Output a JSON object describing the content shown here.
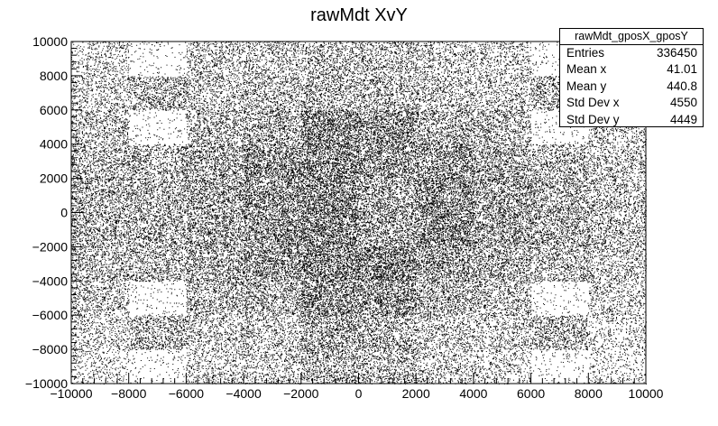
{
  "chart_data": {
    "type": "scatter",
    "title": "rawMdt XvY",
    "xlabel": "",
    "ylabel": "",
    "xlim": [
      -10000,
      10000
    ],
    "ylim": [
      -10000,
      10000
    ],
    "x_ticks": [
      -10000,
      -8000,
      -6000,
      -4000,
      -2000,
      0,
      2000,
      4000,
      6000,
      8000,
      10000
    ],
    "y_ticks": [
      -10000,
      -8000,
      -6000,
      -4000,
      -2000,
      0,
      2000,
      4000,
      6000,
      8000,
      10000
    ],
    "x_tick_labels": [
      "−10000",
      "−8000",
      "−6000",
      "−4000",
      "−2000",
      "0",
      "2000",
      "4000",
      "6000",
      "8000",
      "10000"
    ],
    "y_tick_labels": [
      "−10000",
      "−8000",
      "−6000",
      "−4000",
      "−2000",
      "0",
      "2000",
      "4000",
      "6000",
      "8000",
      "10000"
    ],
    "grid": false,
    "legend": "top-right",
    "marker_color": "#000000",
    "x_bins": [
      -10000,
      -8000,
      -6000,
      -4000,
      -2000,
      0,
      2000,
      4000,
      6000,
      8000,
      10000
    ],
    "y_bins": [
      -10000,
      -8000,
      -6000,
      -4000,
      -2000,
      0,
      2000,
      4000,
      6000,
      8000,
      10000
    ],
    "density_rows_top_to_bottom": [
      [
        0.2,
        0.05,
        0.28,
        0.28,
        0.32,
        0.32,
        0.26,
        0.24,
        0.05,
        0.16
      ],
      [
        0.24,
        0.38,
        0.28,
        0.34,
        0.36,
        0.36,
        0.3,
        0.26,
        0.38,
        0.18
      ],
      [
        0.32,
        0.05,
        0.36,
        0.42,
        0.68,
        0.6,
        0.42,
        0.36,
        0.05,
        0.26
      ],
      [
        0.36,
        0.36,
        0.44,
        0.62,
        0.68,
        0.56,
        0.58,
        0.44,
        0.36,
        0.28
      ],
      [
        0.4,
        0.4,
        0.48,
        0.58,
        0.68,
        0.46,
        0.64,
        0.5,
        0.42,
        0.32
      ],
      [
        0.4,
        0.4,
        0.48,
        0.6,
        0.7,
        0.48,
        0.66,
        0.5,
        0.42,
        0.32
      ],
      [
        0.36,
        0.36,
        0.44,
        0.56,
        0.68,
        0.72,
        0.52,
        0.42,
        0.36,
        0.28
      ],
      [
        0.3,
        0.05,
        0.38,
        0.4,
        0.62,
        0.58,
        0.4,
        0.34,
        0.05,
        0.24
      ],
      [
        0.22,
        0.38,
        0.28,
        0.28,
        0.46,
        0.4,
        0.28,
        0.26,
        0.38,
        0.18
      ],
      [
        0.16,
        0.05,
        0.24,
        0.26,
        0.4,
        0.36,
        0.24,
        0.2,
        0.05,
        0.14
      ]
    ],
    "stats": {
      "name": "rawMdt_gposX_gposY",
      "rows": [
        {
          "label": "Entries",
          "value": "336450"
        },
        {
          "label": "Mean x",
          "value": "41.01"
        },
        {
          "label": "Mean y",
          "value": "440.8"
        },
        {
          "label": "Std Dev x",
          "value": "4550"
        },
        {
          "label": "Std Dev y",
          "value": "4449"
        }
      ]
    }
  }
}
